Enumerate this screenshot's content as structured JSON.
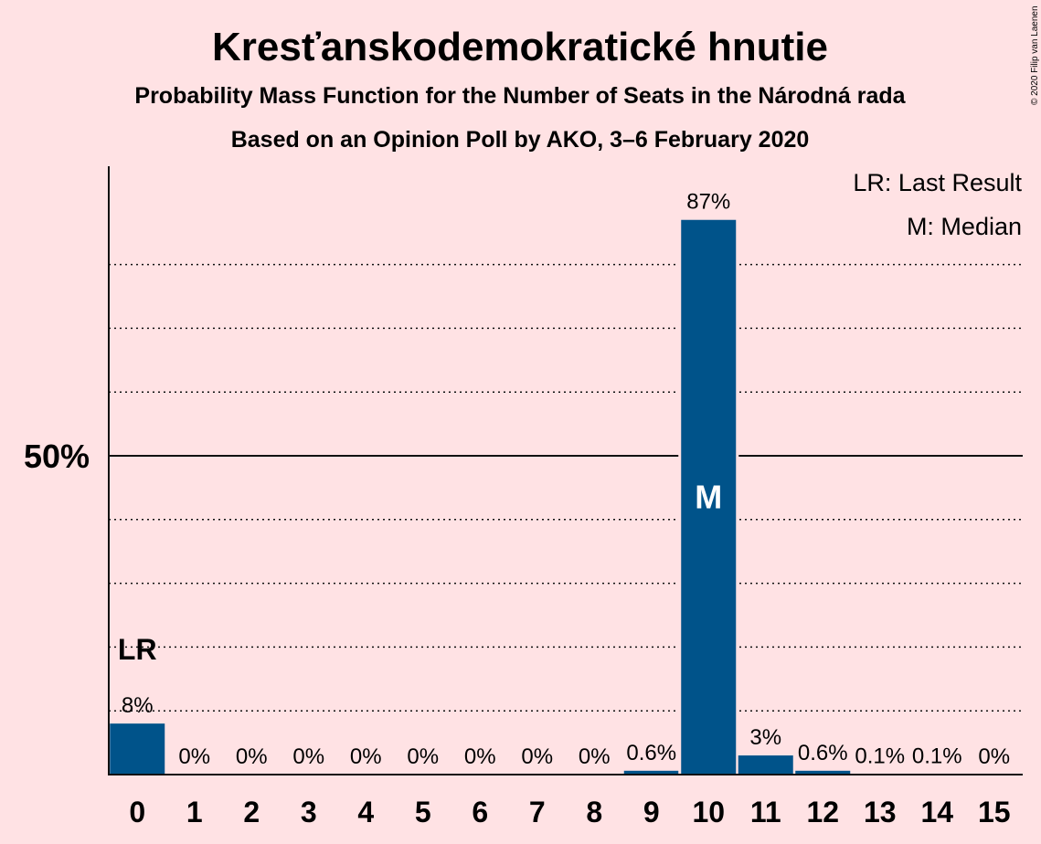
{
  "title": "Kresťanskodemokratické hnutie",
  "subtitle": "Probability Mass Function for the Number of Seats in the Národná rada",
  "subtitle2": "Based on an Opinion Poll by AKO, 3–6 February 2020",
  "copyright": "© 2020 Filip van Laenen",
  "legend": {
    "last_result": "LR: Last Result",
    "median": "M: Median"
  },
  "colors": {
    "background": "#FFE2E4",
    "bar": "#00538A",
    "text": "#111111"
  },
  "chart_data": {
    "type": "bar",
    "categories": [
      "0",
      "1",
      "2",
      "3",
      "4",
      "5",
      "6",
      "7",
      "8",
      "9",
      "10",
      "11",
      "12",
      "13",
      "14",
      "15"
    ],
    "values": [
      8,
      0,
      0,
      0,
      0,
      0,
      0,
      0,
      0,
      0.6,
      87,
      3,
      0.6,
      0.1,
      0.1,
      0
    ],
    "data_labels": [
      "8%",
      "0%",
      "0%",
      "0%",
      "0%",
      "0%",
      "0%",
      "0%",
      "0%",
      "0.6%",
      "87%",
      "3%",
      "0.6%",
      "0.1%",
      "0.1%",
      "0%"
    ],
    "ylim": [
      0,
      95
    ],
    "yticks": [
      {
        "value": 50,
        "label": "50%"
      }
    ],
    "minor_grid": [
      10,
      20,
      30,
      40,
      60,
      70,
      80
    ],
    "last_result": {
      "category": "0",
      "label": "LR"
    },
    "median": {
      "category": "10",
      "label": "M"
    },
    "legend_placement": "top-right"
  }
}
